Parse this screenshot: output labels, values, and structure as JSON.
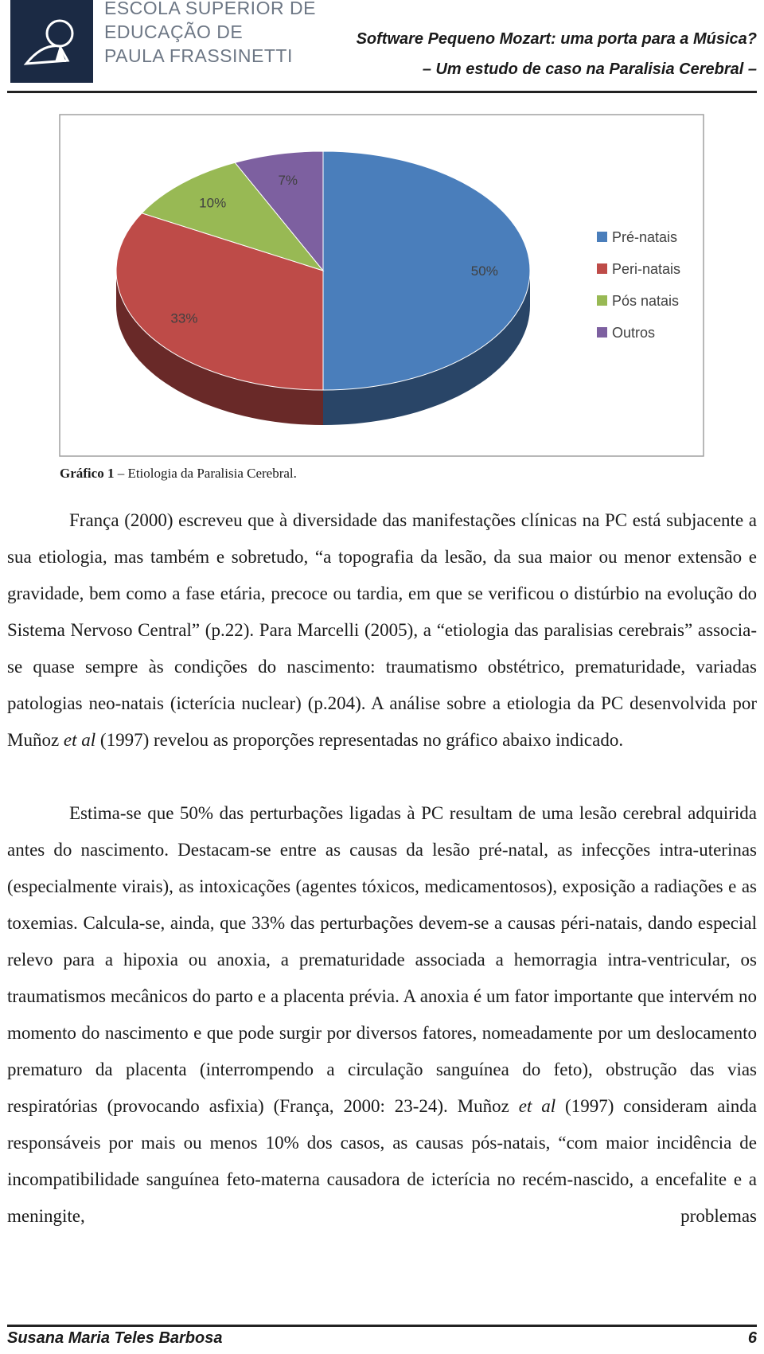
{
  "header": {
    "logo_lines": [
      "ESCOLA SUPERIOR DE",
      "EDUCAÇÃO DE",
      "PAULA FRASSINETTI"
    ],
    "title_lines": [
      "Software Pequeno Mozart: uma porta para a Música?",
      "– Um estudo de caso na Paralisia Cerebral –"
    ]
  },
  "chart_data": {
    "type": "pie",
    "categories": [
      "Pré-natais",
      "Peri-natais",
      "Pós natais",
      "Outros"
    ],
    "values": [
      50,
      33,
      10,
      7
    ],
    "value_labels": [
      "50%",
      "33%",
      "10%",
      "7%"
    ],
    "colors": [
      "#4a7ebb",
      "#be4b48",
      "#98b954",
      "#7d60a0"
    ],
    "legend": "right"
  },
  "caption": {
    "label": "Gráfico 1",
    "text": " – Etiologia da Paralisia Cerebral."
  },
  "paragraphs": [
    [
      "França (2000) escreveu que à diversidade das manifestações clínicas na PC está subjacente a sua etiologia, mas também e sobretudo, “a topografia da lesão, da sua maior ou menor extensão e gravidade, bem como a fase etária, precoce ou tardia, em que se verificou o distúrbio na evolução do Sistema Nervoso Central” (p.22). Para Marcelli (2005), a “etiologia das paralisias cerebrais” associa-se quase sempre às condições do nascimento: traumatismo obstétrico, prematuridade, variadas patologias neo-natais (icterícia nuclear) (p.204). A análise sobre a etiologia da PC desenvolvida por Muñoz ",
      {
        "i": "et al"
      },
      " (1997) revelou as proporções representadas no gráfico abaixo indicado."
    ],
    [
      "Estima-se que 50% das perturbações ligadas à PC resultam de uma lesão cerebral adquirida antes do nascimento. Destacam-se entre as causas da lesão pré-natal, as infecções intra-uterinas (especialmente virais), as intoxicações (agentes tóxicos, medicamentosos), exposição a radiações e as toxemias. Calcula-se, ainda, que 33% das perturbações devem-se a causas péri-natais, dando especial relevo para a hipoxia ou anoxia, a prematuridade associada a hemorragia intra-ventricular, os traumatismos mecânicos do parto e a placenta prévia. A anoxia é um fator importante que intervém no momento do nascimento e que pode surgir por diversos fatores, nomeadamente por um deslocamento prematuro da placenta (interrompendo a circulação sanguínea do feto), obstrução das vias respiratórias (provocando asfixia) (França, 2000: 23-24). Muñoz ",
      {
        "i": "et al"
      },
      " (1997) consideram ainda responsáveis por mais ou menos 10% dos casos, as causas pós-natais, “com maior incidência de incompatibilidade sanguínea feto-materna causadora de icterícia no recém-nascido, a encefalite e a meningite, problemas"
    ]
  ],
  "footer": {
    "author": "Susana Maria Teles Barbosa",
    "page": "6"
  }
}
